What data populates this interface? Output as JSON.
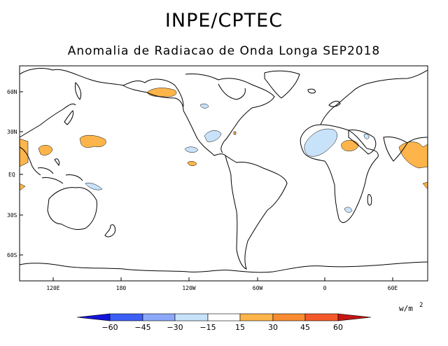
{
  "header": {
    "title": "INPE/CPTEC",
    "subtitle": "Anomalia de Radiacao de Onda Longa SEP2018"
  },
  "map": {
    "lat_labels": [
      "60N",
      "30N",
      "EQ",
      "30S",
      "60S"
    ],
    "lon_labels": [
      "120E",
      "180",
      "120W",
      "60W",
      "0",
      "60E"
    ],
    "projection": "cylindrical equidistant"
  },
  "colorbar": {
    "units_base": "w/m",
    "units_exp": "2",
    "tick_labels": [
      "−60",
      "−45",
      "−30",
      "−15",
      "15",
      "30",
      "45",
      "60"
    ],
    "colors": [
      "#1414d9",
      "#3c5ff5",
      "#8ca8f8",
      "#c8e2fa",
      "#ffffff",
      "#fdb54b",
      "#f98c32",
      "#f4592a",
      "#c41515"
    ]
  },
  "colors": {
    "positive_weak": "#fdb54b",
    "negative_weak": "#c8e2fa"
  }
}
